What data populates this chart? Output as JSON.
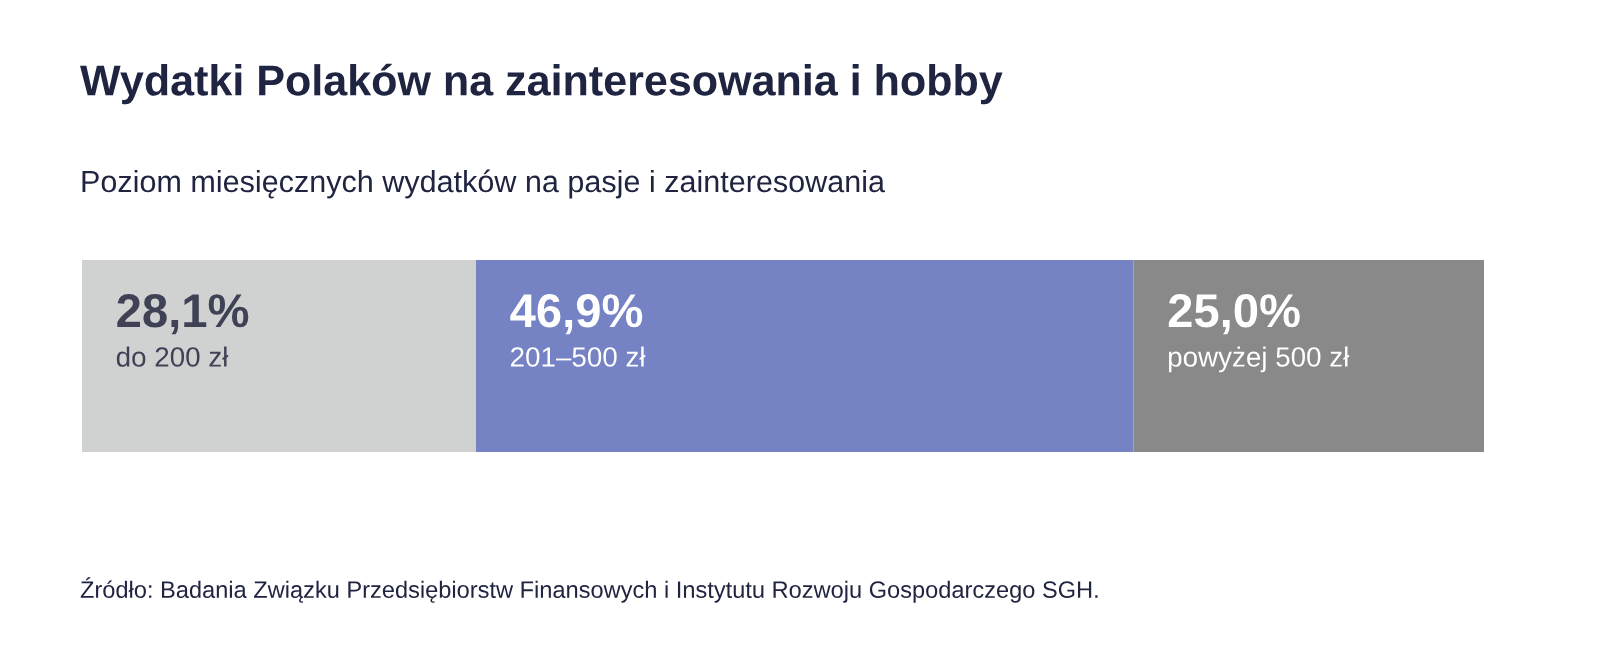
{
  "chart_data": {
    "type": "bar",
    "orientation": "horizontal",
    "stacked": true,
    "title": "Wydatki Polaków na zainteresowania i hobby",
    "subtitle": "Poziom miesięcznych wydatków na pasje i zainteresowania",
    "categories": [
      null
    ],
    "series": [
      {
        "name": "do 200 zł",
        "color": "#d0d2d2",
        "values": [
          28.1
        ],
        "value_labels": [
          "28,1%"
        ]
      },
      {
        "name": "201–500 zł",
        "color": "#7582c4",
        "values": [
          46.9
        ],
        "value_labels": [
          "46,9%"
        ]
      },
      {
        "name": "powyżej 500 zł",
        "color": "#898989",
        "values": [
          25.0
        ],
        "value_labels": [
          "25,0%"
        ]
      }
    ],
    "legend": false,
    "annotations": [
      "Źródło: Badania Związku Przedsiębiorstw Finansowych i Instytutu Rozwoju Gospodarczego SGH."
    ]
  }
}
